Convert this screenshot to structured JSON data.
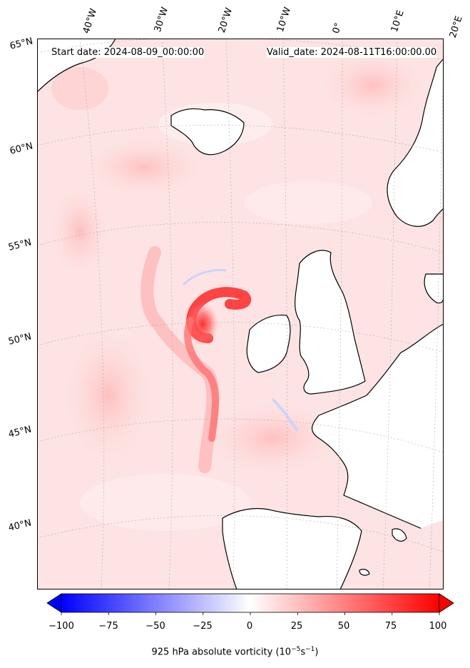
{
  "map": {
    "header_left": "Start date: 2024-08-09_00:00:00",
    "header_right": "Valid_date: 2024-08-11T16:00:00.00",
    "lon_labels": [
      "40°W",
      "30°W",
      "20°W",
      "10°W",
      "0°",
      "10°E",
      "20°E"
    ],
    "lat_labels": [
      "65°N",
      "60°N",
      "55°N",
      "50°N",
      "45°N",
      "40°N"
    ],
    "land_color": "#ffffff",
    "coast_color": "#000000"
  },
  "colorbar": {
    "ticks": [
      "−100",
      "−75",
      "−50",
      "−25",
      "0",
      "25",
      "50",
      "75",
      "100"
    ],
    "min": -100,
    "max": 100,
    "low_color": "#0000ff",
    "mid_color": "#ffffff",
    "high_color": "#ff0000",
    "label_main": "925 hPa absolute vorticity (10",
    "label_exp1": "−5",
    "label_mid": "s",
    "label_exp2": "−1",
    "label_end": ")"
  }
}
